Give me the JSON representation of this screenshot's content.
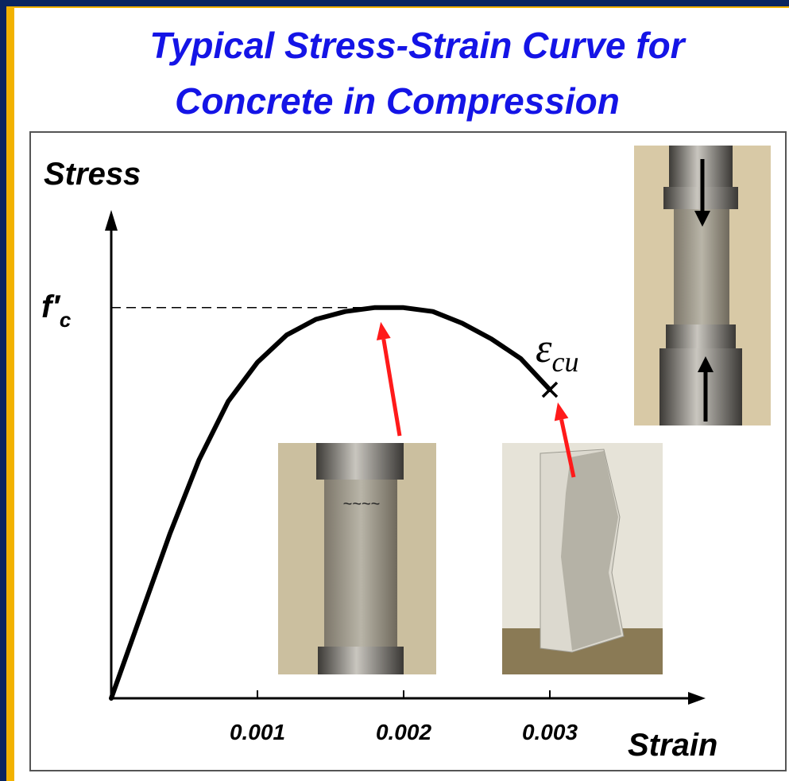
{
  "chart_data": {
    "type": "line",
    "title": [
      "Typical Stress-Strain Curve for",
      "Concrete in Compression"
    ],
    "y_label": "Stress",
    "x_label": "Strain",
    "annotation": "εcu",
    "x": [
      0,
      0.0002,
      0.0004,
      0.0006,
      0.0008,
      0.001,
      0.0012,
      0.0014,
      0.0016,
      0.0018,
      0.002,
      0.0022,
      0.0024,
      0.0026,
      0.0028,
      0.003
    ],
    "series": [
      {
        "color": "#000000",
        "values": [
          0,
          0.21,
          0.42,
          0.61,
          0.76,
          0.86,
          0.93,
          0.97,
          0.99,
          1.0,
          1.0,
          0.99,
          0.96,
          0.92,
          0.87,
          0.79
        ]
      }
    ],
    "xlim": [
      0,
      0.004
    ],
    "ylim": [
      0,
      1.25
    ],
    "xticks": [
      0.001,
      0.002,
      0.003
    ],
    "yticks": [
      {
        "value": 1,
        "label": "f′c"
      }
    ]
  }
}
